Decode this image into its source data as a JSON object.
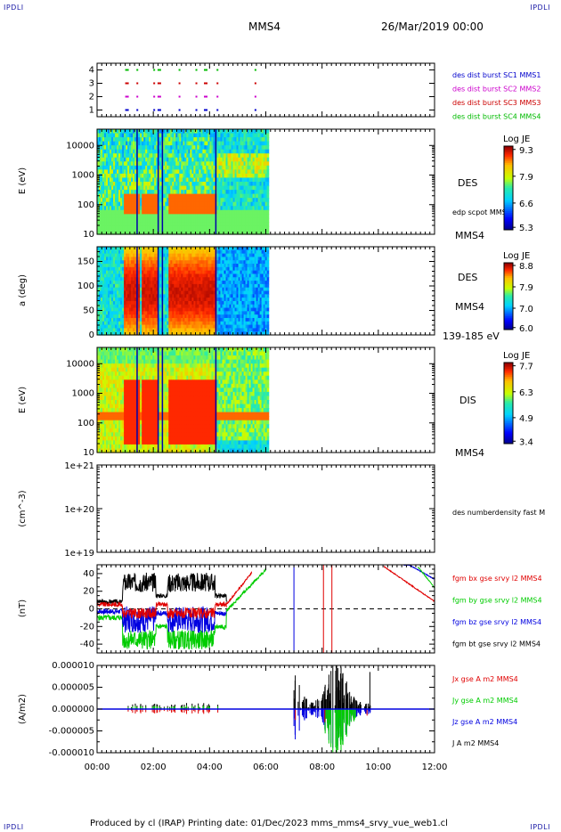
{
  "corners": {
    "tl": "IPDLI",
    "tr": "IPDLI",
    "bl": "IPDLI",
    "br": "IPDLI"
  },
  "header": {
    "spacecraft": "MMS4",
    "datetime": "26/Mar/2019 00:00"
  },
  "footer": "Produced by cl (IRAP)   Printing date: 01/Dec/2023   mms_mms4_srvy_vue_web1.cl",
  "colors": {
    "c1": "#0000cc",
    "c2": "#cc00cc",
    "c3": "#cc0000",
    "c4": "#00bb00",
    "bx": "#e00000",
    "by": "#00cc00",
    "bz": "#0000e0",
    "bt": "#000000"
  },
  "chart_data": [
    {
      "type": "scatter",
      "id": "burst",
      "xlim": [
        "00:00",
        "12:00"
      ],
      "ylim": [
        0.5,
        4.5
      ],
      "yticks": [
        "1",
        "2",
        "3",
        "4"
      ],
      "series": [
        {
          "name": "des dist burst SC1 MMS1",
          "level": 1
        },
        {
          "name": "des dist burst SC2 MMS2",
          "level": 2
        },
        {
          "name": "des dist burst SC3 MMS3",
          "level": 3
        },
        {
          "name": "des dist burst SC4 MMS4",
          "level": 4
        }
      ],
      "burst_hours": [
        1.0,
        1.4,
        2.0,
        2.15,
        2.9,
        3.5,
        3.8,
        4.25,
        5.6
      ]
    },
    {
      "type": "heatmap",
      "id": "des-energy",
      "ylabel": "E (eV)",
      "yscale": "log",
      "yticks": [
        "10",
        "100",
        "1000",
        "10000"
      ],
      "label": "DES",
      "sublabel": "edp scpot MMS4",
      "bottom_label": "MMS4",
      "colorbar": {
        "title": "Log JE",
        "ticks": [
          "9.3",
          "7.9",
          "6.6",
          "5.3"
        ],
        "range": [
          5.3,
          9.3
        ]
      },
      "data_extent_hours": [
        0,
        6.1
      ]
    },
    {
      "type": "heatmap",
      "id": "des-pitch",
      "ylabel": "a (deg)",
      "yticks": [
        "0",
        "50",
        "100",
        "150"
      ],
      "ylim": [
        0,
        180
      ],
      "label": "DES",
      "sublabel": "MMS4",
      "bottom_label": "139-185 eV",
      "colorbar": {
        "title": "Log JE",
        "ticks": [
          "8.8",
          "7.9",
          "7.0",
          "6.0"
        ],
        "range": [
          6.0,
          8.8
        ]
      },
      "data_extent_hours": [
        0,
        6.1
      ]
    },
    {
      "type": "heatmap",
      "id": "dis-energy",
      "ylabel": "E (eV)",
      "yscale": "log",
      "yticks": [
        "10",
        "100",
        "1000",
        "10000"
      ],
      "label": "DIS",
      "bottom_label": "MMS4",
      "colorbar": {
        "title": "Log JE",
        "ticks": [
          "7.7",
          "6.3",
          "4.9",
          "3.4"
        ],
        "range": [
          3.4,
          7.7
        ]
      },
      "data_extent_hours": [
        0,
        6.1
      ]
    },
    {
      "type": "line",
      "id": "density",
      "ylabel": "(cm^-3)",
      "yscale": "log",
      "yticks": [
        "1e+19",
        "1e+20",
        "1e+21"
      ],
      "series": [
        {
          "name": "des numberdensity fast M"
        }
      ]
    },
    {
      "type": "line",
      "id": "fgm",
      "ylabel": "(nT)",
      "ylim": [
        -50,
        50
      ],
      "yticks": [
        "40",
        "20",
        "0",
        "-20",
        "-40"
      ],
      "series": [
        {
          "name": "fgm bx gse srvy l2 MMS4"
        },
        {
          "name": "fgm by gse srvy l2 MMS4"
        },
        {
          "name": "fgm bz gse srvy l2 MMS4"
        },
        {
          "name": "fgm bt gse srvy l2 MMS4"
        }
      ]
    },
    {
      "type": "line",
      "id": "current",
      "ylabel": "(A/m2)",
      "ylim": [
        -1e-05,
        1e-05
      ],
      "yticks": [
        "0.000010",
        "0.000005",
        "0.000000",
        "-0.000005",
        "-0.000010"
      ],
      "series": [
        {
          "name": "Jx gse A m2 MMS4"
        },
        {
          "name": "Jy gse A m2 MMS4"
        },
        {
          "name": "Jz gse A m2 MMS4"
        },
        {
          "name": "J A m2 MMS4"
        }
      ],
      "xticks": [
        "00:00",
        "02:00",
        "04:00",
        "06:00",
        "08:00",
        "10:00",
        "12:00"
      ]
    }
  ]
}
